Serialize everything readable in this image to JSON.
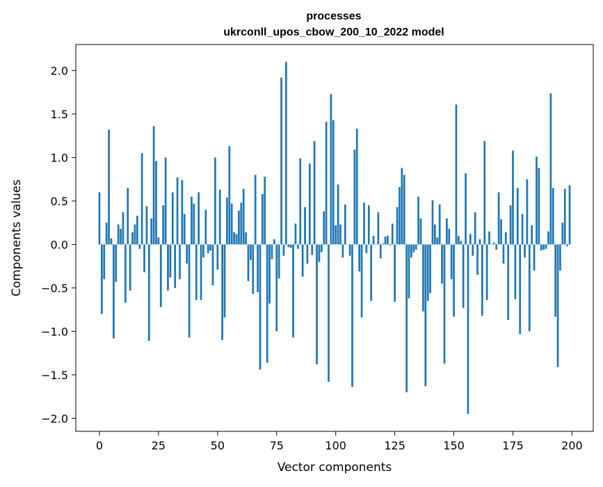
{
  "chart_data": {
    "type": "bar",
    "title": "processes",
    "subtitle": "ukrconll_upos_cbow_200_10_2022 model",
    "xlabel": "Vector components",
    "ylabel": "Components values",
    "xlim": [
      -10,
      209
    ],
    "ylim": [
      -2.15,
      2.3
    ],
    "xticks": [
      0,
      25,
      50,
      75,
      100,
      125,
      150,
      175,
      200
    ],
    "xtick_labels": [
      "0",
      "25",
      "50",
      "75",
      "100",
      "125",
      "150",
      "175",
      "200"
    ],
    "yticks": [
      2.0,
      1.5,
      1.0,
      0.5,
      0.0,
      -0.5,
      -1.0,
      -1.5,
      -2.0
    ],
    "ytick_labels": [
      "2.0",
      "1.5",
      "1.0",
      "0.5",
      "0.0",
      "−0.5",
      "−1.0",
      "−1.5",
      "−2.0"
    ],
    "grid": false,
    "bar_color": "#1f77b4",
    "x": [
      0,
      1,
      2,
      3,
      4,
      5,
      6,
      7,
      8,
      9,
      10,
      11,
      12,
      13,
      14,
      15,
      16,
      17,
      18,
      19,
      20,
      21,
      22,
      23,
      24,
      25,
      26,
      27,
      28,
      29,
      30,
      31,
      32,
      33,
      34,
      35,
      36,
      37,
      38,
      39,
      40,
      41,
      42,
      43,
      44,
      45,
      46,
      47,
      48,
      49,
      50,
      51,
      52,
      53,
      54,
      55,
      56,
      57,
      58,
      59,
      60,
      61,
      62,
      63,
      64,
      65,
      66,
      67,
      68,
      69,
      70,
      71,
      72,
      73,
      74,
      75,
      76,
      77,
      78,
      79,
      80,
      81,
      82,
      83,
      84,
      85,
      86,
      87,
      88,
      89,
      90,
      91,
      92,
      93,
      94,
      95,
      96,
      97,
      98,
      99,
      100,
      101,
      102,
      103,
      104,
      105,
      106,
      107,
      108,
      109,
      110,
      111,
      112,
      113,
      114,
      115,
      116,
      117,
      118,
      119,
      120,
      121,
      122,
      123,
      124,
      125,
      126,
      127,
      128,
      129,
      130,
      131,
      132,
      133,
      134,
      135,
      136,
      137,
      138,
      139,
      140,
      141,
      142,
      143,
      144,
      145,
      146,
      147,
      148,
      149,
      150,
      151,
      152,
      153,
      154,
      155,
      156,
      157,
      158,
      159,
      160,
      161,
      162,
      163,
      164,
      165,
      166,
      167,
      168,
      169,
      170,
      171,
      172,
      173,
      174,
      175,
      176,
      177,
      178,
      179,
      180,
      181,
      182,
      183,
      184,
      185,
      186,
      187,
      188,
      189,
      190,
      191,
      192,
      193,
      194,
      195,
      196,
      197,
      198,
      199
    ],
    "values": [
      0.6,
      -0.8,
      -0.4,
      0.25,
      1.32,
      0.07,
      -1.08,
      -0.43,
      0.23,
      0.18,
      0.37,
      -0.67,
      0.65,
      -0.53,
      0.14,
      0.23,
      0.33,
      -0.05,
      1.05,
      -0.32,
      0.44,
      -1.11,
      0.3,
      1.36,
      0.96,
      0.08,
      -0.72,
      0.45,
      1.0,
      -0.53,
      -0.38,
      0.6,
      -0.5,
      0.77,
      -0.4,
      0.74,
      0.35,
      -0.22,
      -1.07,
      0.55,
      0.47,
      -0.64,
      0.6,
      -0.64,
      -0.15,
      0.4,
      -0.1,
      -0.07,
      -0.47,
      1.0,
      -0.29,
      0.63,
      -1.1,
      -0.84,
      0.54,
      1.13,
      0.47,
      0.14,
      0.12,
      0.39,
      0.48,
      0.64,
      0.14,
      -0.42,
      -0.18,
      -0.57,
      0.8,
      -0.55,
      -1.44,
      0.58,
      0.78,
      -1.36,
      -0.68,
      -0.17,
      0.06,
      -1.0,
      -0.39,
      1.92,
      -0.13,
      2.1,
      -0.03,
      -0.04,
      -1.07,
      0.24,
      -0.05,
      0.99,
      -0.37,
      0.43,
      -0.22,
      0.93,
      -0.12,
      1.19,
      -1.38,
      -0.2,
      -0.09,
      0.38,
      1.41,
      -1.58,
      1.73,
      1.43,
      0.22,
      0.69,
      0.23,
      -0.15,
      0.46,
      0.0,
      -0.13,
      -1.64,
      1.09,
      1.33,
      -0.31,
      -0.84,
      0.48,
      -0.1,
      0.45,
      -0.65,
      0.1,
      0.0,
      0.37,
      -0.16,
      0.01,
      0.09,
      0.1,
      -0.01,
      0.24,
      -0.66,
      0.43,
      0.66,
      0.88,
      0.8,
      -1.7,
      -0.62,
      -0.15,
      -0.09,
      -0.06,
      0.55,
      0.3,
      -0.77,
      -1.63,
      -0.65,
      -0.56,
      0.51,
      0.23,
      0.08,
      0.46,
      -0.45,
      -1.37,
      0.3,
      0.18,
      -0.4,
      -0.83,
      1.61,
      0.1,
      0.04,
      -0.73,
      0.82,
      -1.95,
      0.12,
      -0.13,
      0.37,
      -0.35,
      0.06,
      -0.82,
      1.19,
      -0.64,
      0.15,
      0.0,
      0.02,
      -0.06,
      0.6,
      0.29,
      -0.22,
      0.14,
      -0.87,
      0.45,
      1.08,
      -0.63,
      0.65,
      -1.03,
      0.35,
      -0.15,
      0.75,
      -1.0,
      0.22,
      -0.3,
      1.01,
      0.88,
      -0.07,
      -0.06,
      -0.05,
      0.15,
      1.74,
      0.65,
      -0.83,
      -1.41,
      -0.3,
      0.25,
      0.64,
      -0.02,
      0.68
    ]
  }
}
